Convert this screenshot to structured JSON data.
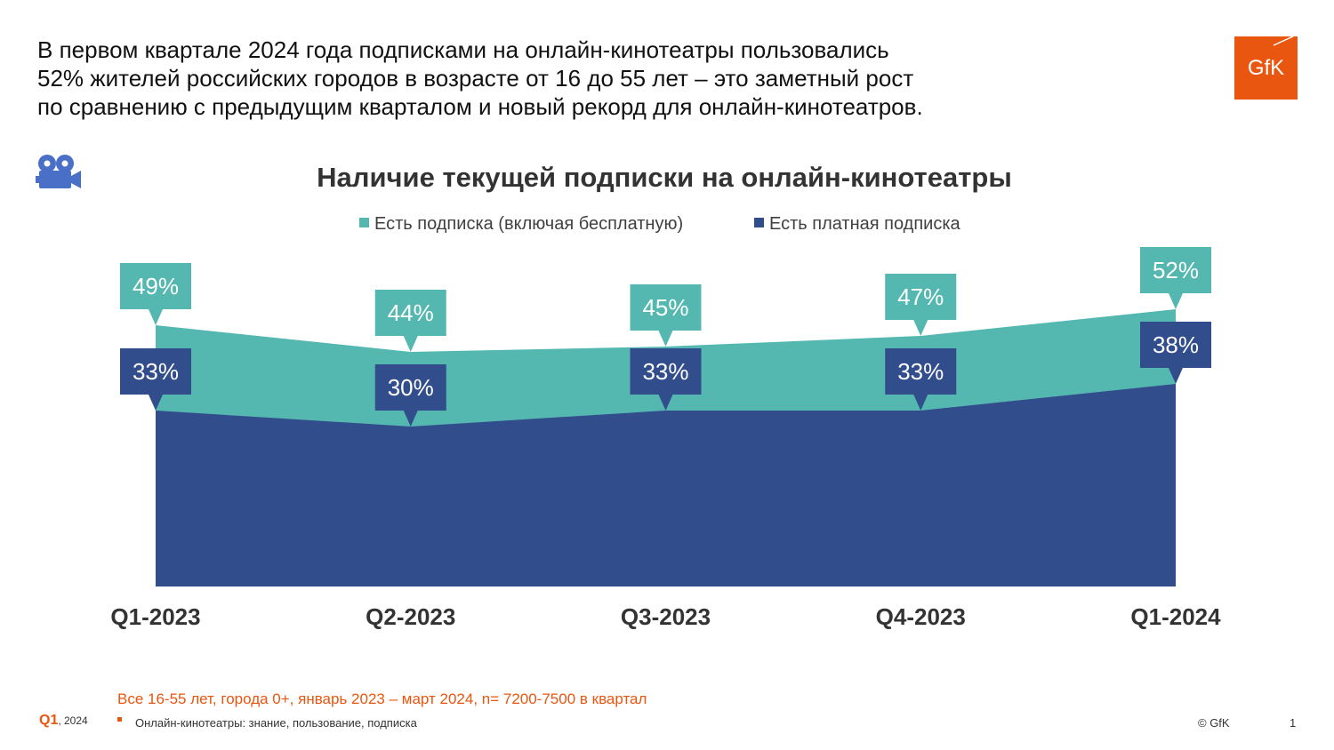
{
  "headline": {
    "line1": "В первом квартале 2024 года подписками на онлайн-кинотеатры пользовались",
    "line2": "52% жителей российских городов в возрасте от 16 до 55 лет – это заметный рост",
    "line3": "по сравнению с предыдущим кварталом и новый рекорд для онлайн-кинотеатров."
  },
  "logo": {
    "text": "GfK",
    "color": "#e8560f"
  },
  "icon": {
    "name": "film-camera-icon",
    "color": "#4a6fc7"
  },
  "colors": {
    "teal": "#54b8b1",
    "navy": "#324d8c"
  },
  "chart_data": {
    "type": "area",
    "title": "Наличие текущей подписки на онлайн-кинотеатры",
    "categories": [
      "Q1-2023",
      "Q2-2023",
      "Q3-2023",
      "Q4-2023",
      "Q1-2024"
    ],
    "series": [
      {
        "name": "Есть подписка (включая бесплатную)",
        "values": [
          49,
          44,
          45,
          47,
          52
        ],
        "labels": [
          "49%",
          "44%",
          "45%",
          "47%",
          "52%"
        ],
        "color": "#54b8b1"
      },
      {
        "name": "Есть платная подписка",
        "values": [
          33,
          30,
          33,
          33,
          38
        ],
        "labels": [
          "33%",
          "30%",
          "33%",
          "33%",
          "38%"
        ],
        "color": "#324d8c"
      }
    ],
    "ylim": [
      0,
      100
    ],
    "legend": "top-center",
    "grid": false
  },
  "footnote": "Все 16-55 лет, города 0+, январь 2023 – март 2024, n= 7200-7500 в квартал",
  "footer": {
    "quarter": "Q1",
    "year": ", 2024",
    "source": "Онлайн-кинотеатры: знание, пользование, подписка",
    "copyright": "© GfK",
    "page": "1"
  }
}
